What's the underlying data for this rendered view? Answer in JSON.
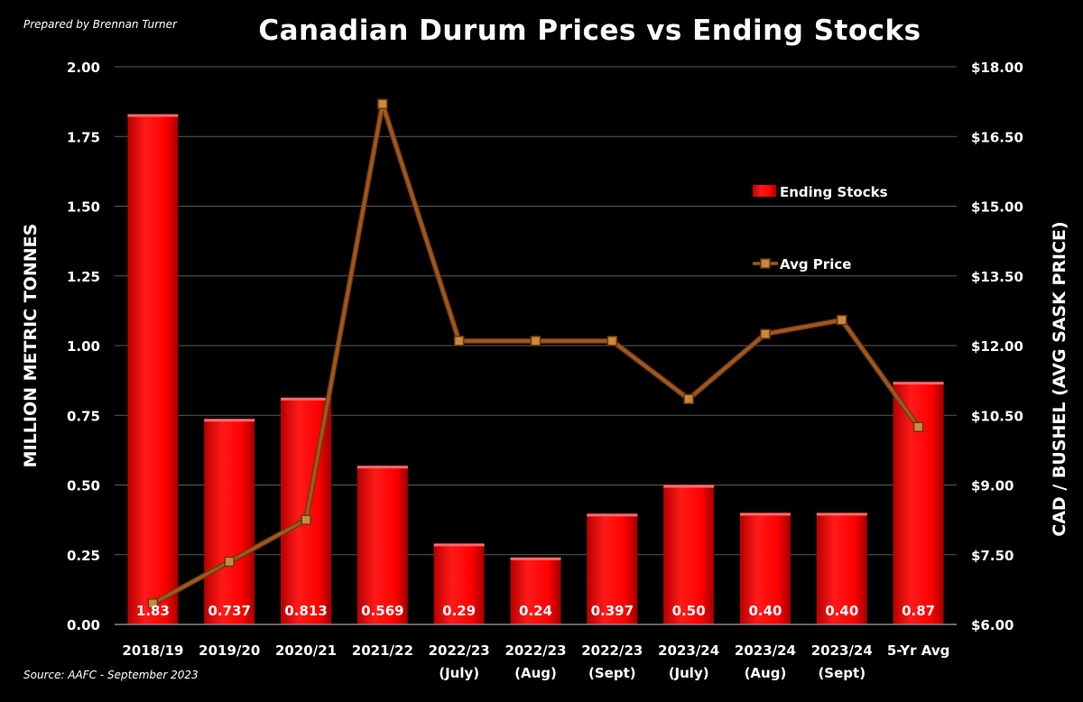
{
  "credit": "Prepared by Brennan Turner",
  "source": "Source: AAFC - September 2023",
  "chart_data": {
    "type": "bar",
    "title": "Canadian Durum Prices vs Ending Stocks",
    "categories": [
      [
        "2018/19"
      ],
      [
        "2019/20"
      ],
      [
        "2020/21"
      ],
      [
        "2021/22"
      ],
      [
        "2022/23",
        "(July)"
      ],
      [
        "2022/23",
        "(Aug)"
      ],
      [
        "2022/23",
        "(Sept)"
      ],
      [
        "2023/24",
        "(July)"
      ],
      [
        "2023/24",
        "(Aug)"
      ],
      [
        "2023/24",
        "(Sept)"
      ],
      [
        "5-Yr Avg"
      ]
    ],
    "ylabel": "MILLION METRIC TONNES",
    "y2label": "CAD / BUSHEL (AVG SASK PRICE)",
    "ylim": [
      0,
      2
    ],
    "y2lim": [
      6,
      18
    ],
    "yticks": [
      "0.00",
      "0.25",
      "0.50",
      "0.75",
      "1.00",
      "1.25",
      "1.50",
      "1.75",
      "2.00"
    ],
    "y2ticks": [
      "$6.00",
      "$7.50",
      "$9.00",
      "$10.50",
      "$12.00",
      "$13.50",
      "$15.00",
      "$16.50",
      "$18.00"
    ],
    "legend_position": "top-right",
    "grid": true,
    "series": [
      {
        "name": "Ending Stocks",
        "type": "bar",
        "axis": "left",
        "color": "#ff0000",
        "values": [
          1.83,
          0.737,
          0.813,
          0.569,
          0.29,
          0.24,
          0.397,
          0.5,
          0.4,
          0.4,
          0.87
        ],
        "labels": [
          "1.83",
          "0.737",
          "0.813",
          "0.569",
          "0.29",
          "0.24",
          "0.397",
          "0.50",
          "0.40",
          "0.40",
          "0.87"
        ]
      },
      {
        "name": "Avg Price",
        "type": "line",
        "axis": "right",
        "color": "#8b4513",
        "values": [
          6.45,
          7.35,
          8.25,
          17.2,
          12.1,
          12.1,
          12.1,
          10.85,
          12.25,
          12.55,
          10.25
        ]
      }
    ]
  }
}
